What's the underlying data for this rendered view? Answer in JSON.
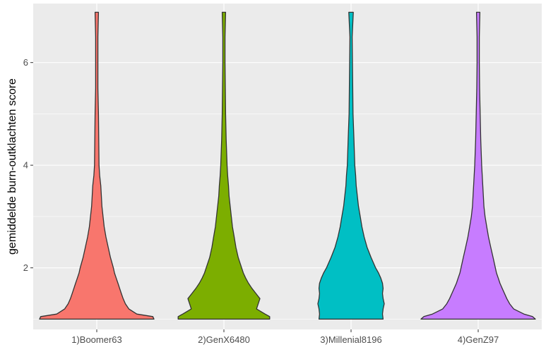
{
  "chart_data": {
    "type": "violin",
    "title": "",
    "xlabel": "",
    "ylabel": "gemiddelde burn-outklachten score",
    "categories": [
      "1)Boomer63",
      "2)GenX6480",
      "3)Millenial8196",
      "4)GenZ97"
    ],
    "ylim": [
      0.8,
      7.15
    ],
    "yticks": [
      2,
      4,
      6
    ],
    "y_range": [
      1,
      7
    ],
    "grid": true,
    "legend": "none",
    "background": "#ebebeb",
    "gridline_color": "#ffffff",
    "outline_color": "#333333",
    "series": [
      {
        "category": "1)Boomer63",
        "color": "#f8766d",
        "density": [
          [
            1.0,
            1.0
          ],
          [
            1.05,
            0.98
          ],
          [
            1.1,
            0.7
          ],
          [
            1.2,
            0.56
          ],
          [
            1.3,
            0.5
          ],
          [
            1.4,
            0.46
          ],
          [
            1.5,
            0.43
          ],
          [
            1.6,
            0.4
          ],
          [
            1.7,
            0.37
          ],
          [
            1.8,
            0.34
          ],
          [
            1.9,
            0.31
          ],
          [
            2.0,
            0.29
          ],
          [
            2.2,
            0.24
          ],
          [
            2.4,
            0.2
          ],
          [
            2.6,
            0.16
          ],
          [
            2.8,
            0.13
          ],
          [
            3.0,
            0.11
          ],
          [
            3.2,
            0.09
          ],
          [
            3.4,
            0.08
          ],
          [
            3.6,
            0.07
          ],
          [
            3.8,
            0.05
          ],
          [
            4.0,
            0.04
          ],
          [
            4.5,
            0.035
          ],
          [
            5.0,
            0.03
          ],
          [
            5.5,
            0.02
          ],
          [
            6.0,
            0.02
          ],
          [
            6.5,
            0.02
          ],
          [
            6.98,
            0.03
          ]
        ]
      },
      {
        "category": "2)GenX6480",
        "color": "#7cae00",
        "density": [
          [
            1.0,
            0.8
          ],
          [
            1.05,
            0.8
          ],
          [
            1.1,
            0.72
          ],
          [
            1.2,
            0.57
          ],
          [
            1.3,
            0.6
          ],
          [
            1.4,
            0.63
          ],
          [
            1.5,
            0.56
          ],
          [
            1.6,
            0.49
          ],
          [
            1.7,
            0.43
          ],
          [
            1.8,
            0.38
          ],
          [
            1.9,
            0.34
          ],
          [
            2.0,
            0.31
          ],
          [
            2.2,
            0.25
          ],
          [
            2.4,
            0.21
          ],
          [
            2.6,
            0.18
          ],
          [
            2.8,
            0.15
          ],
          [
            3.0,
            0.13
          ],
          [
            3.2,
            0.11
          ],
          [
            3.4,
            0.09
          ],
          [
            3.6,
            0.08
          ],
          [
            3.8,
            0.065
          ],
          [
            4.0,
            0.055
          ],
          [
            4.5,
            0.04
          ],
          [
            5.0,
            0.03
          ],
          [
            5.5,
            0.025
          ],
          [
            6.0,
            0.02
          ],
          [
            6.5,
            0.02
          ],
          [
            6.98,
            0.03
          ]
        ]
      },
      {
        "category": "3)Millenial8196",
        "color": "#00bfc4",
        "density": [
          [
            1.0,
            0.56
          ],
          [
            1.1,
            0.55
          ],
          [
            1.2,
            0.56
          ],
          [
            1.3,
            0.58
          ],
          [
            1.4,
            0.56
          ],
          [
            1.5,
            0.55
          ],
          [
            1.6,
            0.56
          ],
          [
            1.7,
            0.55
          ],
          [
            1.8,
            0.52
          ],
          [
            1.9,
            0.48
          ],
          [
            2.0,
            0.43
          ],
          [
            2.2,
            0.35
          ],
          [
            2.4,
            0.28
          ],
          [
            2.6,
            0.23
          ],
          [
            2.8,
            0.19
          ],
          [
            3.0,
            0.16
          ],
          [
            3.2,
            0.13
          ],
          [
            3.4,
            0.11
          ],
          [
            3.6,
            0.09
          ],
          [
            3.8,
            0.08
          ],
          [
            4.0,
            0.065
          ],
          [
            4.5,
            0.05
          ],
          [
            5.0,
            0.035
          ],
          [
            5.5,
            0.03
          ],
          [
            6.0,
            0.025
          ],
          [
            6.5,
            0.02
          ],
          [
            6.98,
            0.04
          ]
        ]
      },
      {
        "category": "4)GenZ97",
        "color": "#c77cff",
        "density": [
          [
            1.0,
            1.0
          ],
          [
            1.05,
            0.95
          ],
          [
            1.1,
            0.8
          ],
          [
            1.2,
            0.62
          ],
          [
            1.3,
            0.55
          ],
          [
            1.4,
            0.5
          ],
          [
            1.5,
            0.46
          ],
          [
            1.6,
            0.42
          ],
          [
            1.7,
            0.38
          ],
          [
            1.8,
            0.35
          ],
          [
            1.9,
            0.32
          ],
          [
            2.0,
            0.3
          ],
          [
            2.2,
            0.26
          ],
          [
            2.4,
            0.22
          ],
          [
            2.6,
            0.18
          ],
          [
            2.8,
            0.15
          ],
          [
            3.0,
            0.12
          ],
          [
            3.2,
            0.1
          ],
          [
            3.4,
            0.09
          ],
          [
            3.6,
            0.08
          ],
          [
            3.8,
            0.07
          ],
          [
            4.0,
            0.06
          ],
          [
            4.5,
            0.045
          ],
          [
            5.0,
            0.035
          ],
          [
            5.5,
            0.025
          ],
          [
            6.0,
            0.02
          ],
          [
            6.5,
            0.02
          ],
          [
            6.98,
            0.03
          ]
        ]
      }
    ]
  }
}
